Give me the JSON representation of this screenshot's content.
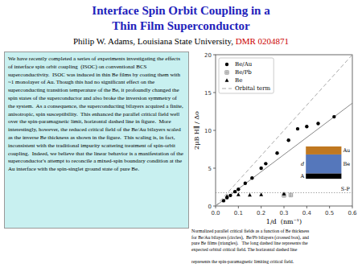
{
  "chart_data": {
    "type": "scatter",
    "title": {
      "text": [
        "Interface Spin Orbit Coupling in a",
        "Thin Film Superconductor"
      ],
      "color": "#2222bb"
    },
    "subtitle": [
      {
        "text": "Philip W. Adams, Louisiana State University,",
        "color": "#000000"
      },
      {
        "text": "DMR 0204871",
        "color": "#cc0000"
      }
    ],
    "text_box": {
      "text": "We have recently completed a series of experiments investigating the effects of interface spin orbit coupling  (ISOC) on conventional BCS superconductivity.  ISOC was induced in thin Be films by coating them with ~1 monolayer of Au. Though this had no significant effect on the superconducting transition temperature of the Be, it profoundly changed the spin states of the superconductor and also broke the inversion symmetry of the system.  As a consequence, the superconducting bilayers acquired a finite, anisotropic, spin susceptibility.  This enhanced the parallel critical field well over the spin-paramagnetic limit, horizontal dashed line in figure.  More interestingly, however, the reduced critical field of the Be/Au bilayers scaled as the inverse Be thickness as shown in the figure.  This scaling is, in fact, inconsistent with the traditional impurity scattering treatment of spin-orbit coupling.  Indeed, we believe that the linear behavior is a manifestation of the superconductor's attempt to reconcile a mixed-spin boundary condition at the Au interface with the spin-singlet ground state of pure Be.",
      "color": "#c8f0f0"
    },
    "caption": "Normalized parallel critical fields as a function of Be thickness\nfor Be/Au bilayers (circles),  Be/Pb bilayers (crossed box), and\npure Be films (triangles).   The long dashed line represents the\nexpected orbital critical field. The horizontal dashed line\n\nrepresents the spin-paramagnetic limiting critical field.",
    "x_label": "1/d  (nm⁻¹)",
    "y_label": "2μB H∥ / Δo",
    "xlim": [
      0.0,
      0.6
    ],
    "ylim": [
      0,
      20
    ],
    "xticks": [
      {
        "value": 0.0,
        "label": "0.0"
      },
      0.1,
      0.2,
      0.3,
      0.4,
      0.5,
      0.6
    ],
    "yticks": [
      0,
      5,
      10,
      15,
      20
    ],
    "grid": false,
    "legend": "upper left",
    "series": [
      {
        "name": "Be/Au",
        "type": "scatter",
        "marker": "circle",
        "color": "#000000",
        "x": [
          0.035,
          0.05,
          0.065,
          0.085,
          0.1,
          0.13,
          0.16,
          0.2,
          0.22,
          0.27,
          0.32,
          0.36,
          0.4,
          0.45,
          0.52
        ],
        "values": [
          0.7,
          1.1,
          1.4,
          1.9,
          2.2,
          3.0,
          3.7,
          5.0,
          5.6,
          7.0,
          8.7,
          10.2,
          10.5,
          10.9,
          11.8
        ]
      },
      {
        "name": "Be/Pb",
        "type": "scatter",
        "marker": "crossed-square",
        "color": "#888888",
        "x": [
          0.3,
          0.33
        ],
        "values": [
          1.4,
          1.45
        ]
      },
      {
        "name": "Be",
        "type": "scatter",
        "marker": "triangle",
        "color": "#000000",
        "x": [
          0.05,
          0.1,
          0.15,
          0.2,
          0.3
        ],
        "values": [
          1.3,
          1.5,
          1.45,
          1.5,
          1.6
        ]
      },
      {
        "name": "Orbital term",
        "type": "line",
        "line_style": "dashed",
        "color": "#aaaaaa",
        "x": [
          0.0,
          0.6
        ],
        "values": [
          0.0,
          20.0
        ]
      },
      {
        "type": "line",
        "line_style": "solid",
        "color": "#888888",
        "x": [
          0.0,
          0.6
        ],
        "values": [
          0.0,
          13.6
        ]
      }
    ],
    "annotations": [
      {
        "text": "S-P",
        "y": 1.76,
        "line_style": "dotted"
      },
      {
        "text": "Au"
      },
      {
        "text": "Be"
      },
      {
        "text": "d"
      },
      {
        "text": "A"
      }
    ]
  }
}
